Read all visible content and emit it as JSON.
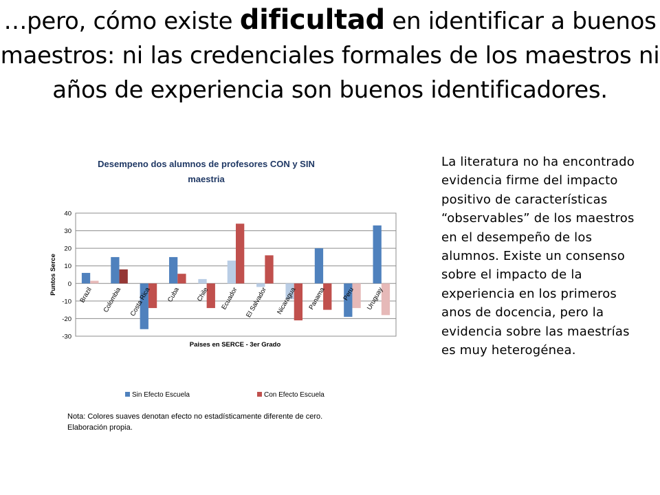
{
  "slide": {
    "title_pre": "…pero, cómo existe ",
    "title_emph": "dificultad",
    "title_post": " en identificar a buenos maestros: ni las credenciales formales de los maestros ni años de experiencia son buenos identificadores."
  },
  "text_panel": {
    "paragraph": "La literatura no ha encontrado evidencia firme del impacto positivo de características “observables” de los maestros en el desempeño de los alumnos. Existe un consenso sobre el impacto de la experiencia en los primeros anos de docencia, pero la evidencia sobre las maestrías es muy heterogénea."
  },
  "note": {
    "line1": "Nota: Colores suaves denotan efecto no estadísticamente diferente de cero.",
    "line2": "Elaboración propia."
  },
  "colors": {
    "sin_strong": "#4f81bd",
    "sin_light": "#b9cde5",
    "con_strong": "#c0504d",
    "con_light": "#e6b9b8",
    "con_dark": "#953735"
  },
  "chart_data": {
    "type": "bar",
    "title": "Desempeno dos alumnos de profesores CON  y SIN maestria",
    "title_lines": [
      "Desempeno dos alumnos de profesores CON  y SIN",
      "maestria"
    ],
    "xlabel": "Paises en SERCE - 3er Grado",
    "ylabel": "Puntos Serce",
    "ylim": [
      -30,
      40
    ],
    "yticks": [
      -30,
      -20,
      -10,
      0,
      10,
      20,
      30,
      40
    ],
    "grid": true,
    "legend_position": "bottom",
    "categories": [
      "Brazil",
      "Colombia",
      "Costa Rica",
      "Cuba",
      "Chile",
      "Ecuador",
      "El Salvador",
      "Nicaragua",
      "Panama",
      "Peru",
      "Uruguay"
    ],
    "series": [
      {
        "name": "Sin Efecto Escuela",
        "color": "#4f81bd",
        "values": [
          6,
          15,
          -26,
          15,
          2.5,
          13,
          -2,
          -9,
          20,
          -19,
          33
        ],
        "shade": [
          "strong",
          "strong",
          "strong",
          "strong",
          "light",
          "light",
          "light",
          "light",
          "strong",
          "strong",
          "strong"
        ]
      },
      {
        "name": "Con Efecto Escuela",
        "color": "#c0504d",
        "values": [
          1.5,
          8,
          -14,
          5.5,
          -14,
          34,
          16,
          -21,
          -15,
          -14,
          -18
        ],
        "shade": [
          "light",
          "dark",
          "strong",
          "strong",
          "strong",
          "strong",
          "strong",
          "strong",
          "strong",
          "light",
          "light"
        ]
      }
    ]
  }
}
